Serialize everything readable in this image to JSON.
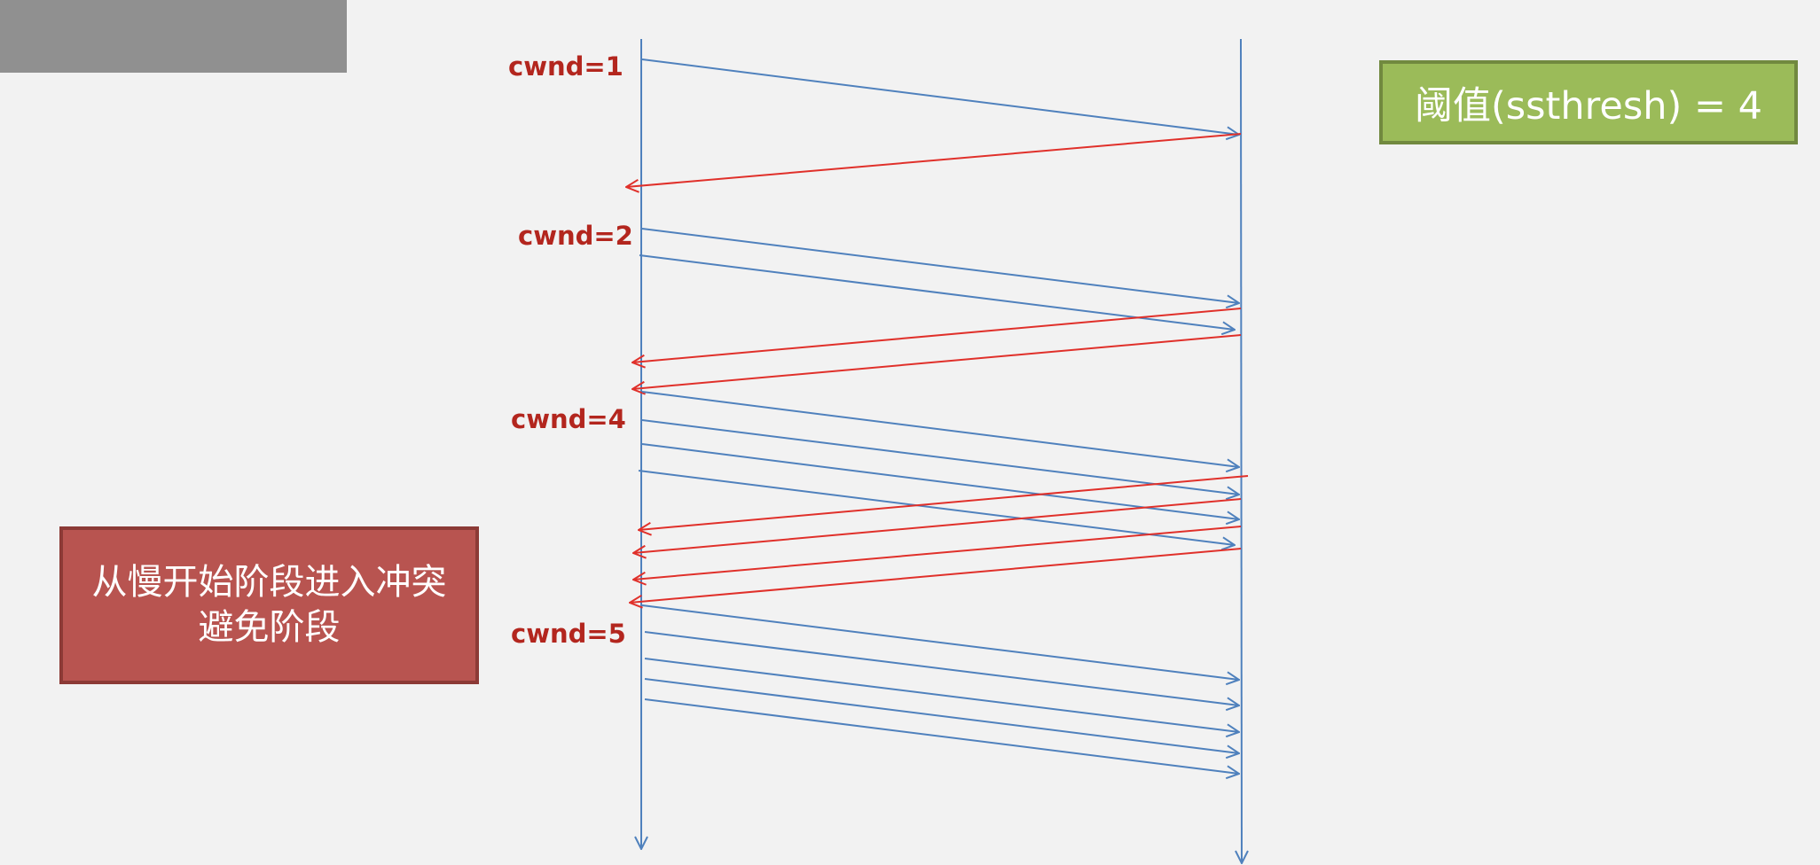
{
  "labels": {
    "cwnd1": "cwnd=1",
    "cwnd2": "cwnd=2",
    "cwnd4": "cwnd=4",
    "cwnd5": "cwnd=5"
  },
  "threshold_box": {
    "text": "阈值(ssthresh) = 4"
  },
  "transition_box": {
    "text": "从慢开始阶段进入冲突避免阶段"
  },
  "colors": {
    "background": "#f2f2f2",
    "send_arrow": "#4f81bd",
    "ack_arrow": "#e0302a",
    "label_text": "#b3261e",
    "threshold_fill": "#9bbb59",
    "transition_fill": "#b85450"
  }
}
